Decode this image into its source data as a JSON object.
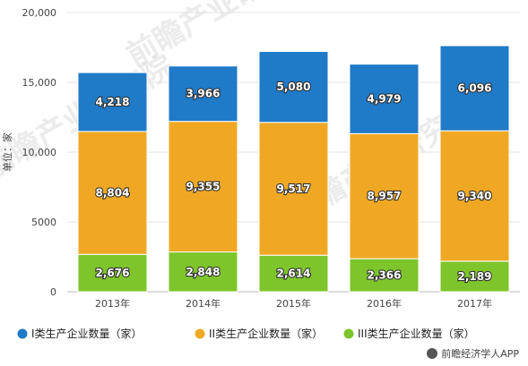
{
  "chart_data": {
    "type": "bar",
    "stacked": true,
    "categories": [
      "2013年",
      "2014年",
      "2015年",
      "2016年",
      "2017年"
    ],
    "series": [
      {
        "name": "III类生产企业数量（家）",
        "color": "#7dc52b",
        "values": [
          2676,
          2848,
          2614,
          2366,
          2189
        ],
        "labels": [
          "2,676",
          "2,848",
          "2,614",
          "2,366",
          "2,189"
        ]
      },
      {
        "name": "II类生产企业数量（家）",
        "color": "#f0a824",
        "values": [
          8804,
          9355,
          9517,
          8957,
          9340
        ],
        "labels": [
          "8,804",
          "9,355",
          "9,517",
          "8,957",
          "9,340"
        ]
      },
      {
        "name": "I类生产企业数量（家）",
        "color": "#1f7ac7",
        "values": [
          4218,
          3966,
          5080,
          4979,
          6096
        ],
        "labels": [
          "4,218",
          "3,966",
          "5,080",
          "4,979",
          "6,096"
        ]
      }
    ],
    "ylabel": "单位：家",
    "ylim": [
      0,
      20000
    ],
    "yticks": [
      0,
      5000,
      10000,
      15000,
      20000
    ],
    "ytick_labels": [
      "0",
      "5000",
      "10,000",
      "15,000",
      "20,000"
    ],
    "legend_order": [
      "I类生产企业数量（家）",
      "II类生产企业数量（家）",
      "III类生产企业数量（家）"
    ],
    "legend_position": "bottom",
    "grid": true
  },
  "watermark": "前瞻产业研究院",
  "footer": {
    "text": "前瞻经济学人APP"
  }
}
